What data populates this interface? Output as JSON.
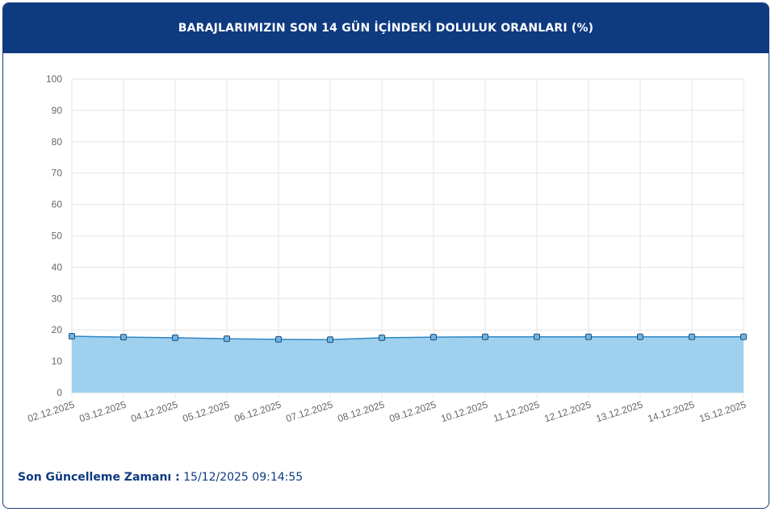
{
  "chart_data": {
    "type": "area",
    "title": "BARAJLARIMIZIN SON 14 GÜN İÇİNDEKİ DOLULUK ORANLARI (%)",
    "categories": [
      "02.12.2025",
      "03.12.2025",
      "04.12.2025",
      "05.12.2025",
      "06.12.2025",
      "07.12.2025",
      "08.12.2025",
      "09.12.2025",
      "10.12.2025",
      "11.12.2025",
      "12.12.2025",
      "13.12.2025",
      "14.12.2025",
      "15.12.2025"
    ],
    "values": [
      18.0,
      17.7,
      17.5,
      17.2,
      17.0,
      16.9,
      17.5,
      17.7,
      17.8,
      17.8,
      17.8,
      17.8,
      17.8,
      17.8
    ],
    "color": "#2f86c4",
    "fill": "#9fd1ee",
    "ylim": [
      0,
      100
    ],
    "yticks": [
      0,
      10,
      20,
      30,
      40,
      50,
      60,
      70,
      80,
      90,
      100
    ],
    "grid": true
  },
  "footer": {
    "label": "Son Güncelleme Zamanı :",
    "value": "15/12/2025 09:14:55"
  }
}
